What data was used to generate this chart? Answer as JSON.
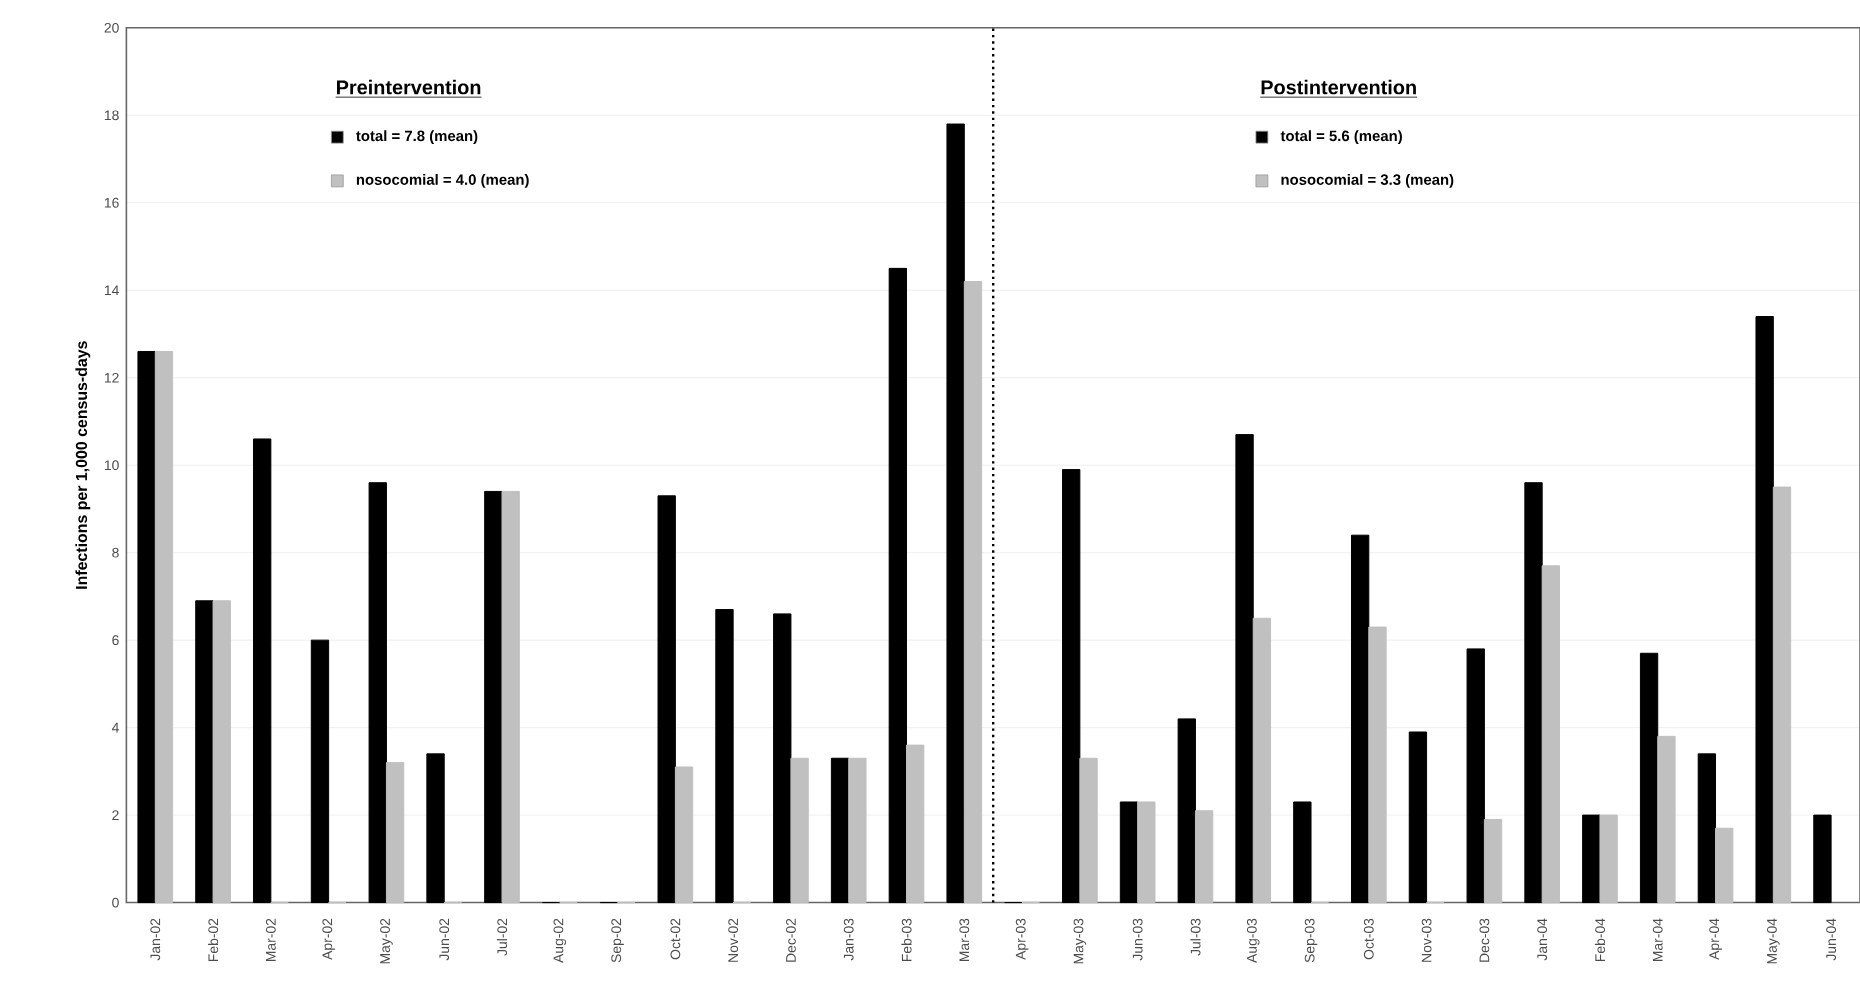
{
  "chart_data": {
    "type": "bar",
    "ylabel": "Infections per 1,000 census-days",
    "categories": [
      "Jan-02",
      "Feb-02",
      "Mar-02",
      "Apr-02",
      "May-02",
      "Jun-02",
      "Jul-02",
      "Aug-02",
      "Sep-02",
      "Oct-02",
      "Nov-02",
      "Dec-02",
      "Jan-03",
      "Feb-03",
      "Mar-03",
      "Apr-03",
      "May-03",
      "Jun-03",
      "Jul-03",
      "Aug-03",
      "Sep-03",
      "Oct-03",
      "Nov-03",
      "Dec-03",
      "Jan-04",
      "Feb-04",
      "Mar-04",
      "Apr-04",
      "May-04",
      "Jun-04"
    ],
    "series": [
      {
        "color": "#000000",
        "values": [
          12.6,
          6.9,
          10.6,
          6.0,
          9.6,
          3.4,
          9.4,
          0,
          0,
          9.3,
          6.7,
          6.6,
          3.3,
          14.5,
          17.8,
          0,
          9.9,
          2.3,
          4.2,
          10.7,
          2.3,
          8.4,
          3.9,
          5.8,
          9.6,
          2.0,
          5.7,
          3.4,
          13.4,
          2.0
        ]
      },
      {
        "color": "#c0c0c0",
        "values": [
          12.6,
          6.9,
          0,
          0,
          3.2,
          0,
          9.4,
          0,
          0,
          3.1,
          0,
          3.3,
          3.3,
          3.6,
          14.2,
          0,
          3.3,
          2.3,
          2.1,
          6.5,
          0,
          6.3,
          0,
          1.9,
          7.7,
          2.0,
          3.8,
          1.7,
          9.5,
          null
        ]
      }
    ],
    "ylim": [
      0,
      20
    ],
    "yticks": [
      0,
      2,
      4,
      6,
      8,
      10,
      12,
      14,
      16,
      18,
      20
    ],
    "grid": "y",
    "ref_lines": [
      {
        "axis": "x",
        "value": "Apr-03",
        "line_style": "dotted",
        "color": "#000000"
      }
    ],
    "annotations": [
      "Preintervention",
      "total = 7.8 (mean)",
      "nosocomial = 4.0 (mean)",
      "Postintervention",
      "total = 5.6 (mean)",
      "nosocomial = 3.3 (mean)"
    ]
  }
}
